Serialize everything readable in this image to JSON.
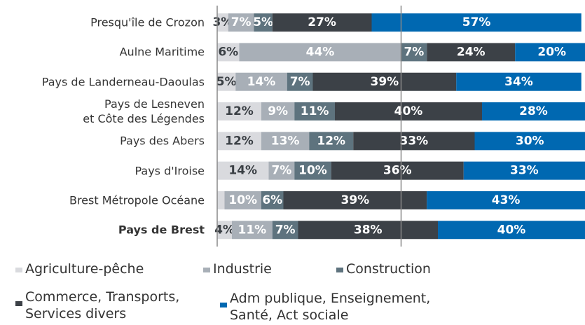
{
  "chart_data": {
    "type": "stacked-barh",
    "categories": [
      "Presqu'île de Crozon",
      "Aulne Maritime",
      "Pays de Landerneau-Daoulas",
      "Pays de Lesneven\net Côte des Légendes",
      "Pays des Abers",
      "Pays d'Iroise",
      "Brest Métropole Océane",
      "Pays de Brest"
    ],
    "highlight_index": 7,
    "xlim": [
      0,
      100
    ],
    "xticks": [
      0,
      50
    ],
    "grid": true,
    "series": [
      {
        "name": "Agriculture-pêche",
        "color": "#d9dade",
        "label_color": "#3a3f44",
        "values": [
          3,
          6,
          5,
          12,
          12,
          14,
          2,
          4
        ],
        "value_labels": [
          "3%",
          "6%",
          "5%",
          "12%",
          "12%",
          "14%",
          null,
          "4%"
        ]
      },
      {
        "name": "Industrie",
        "color": "#a8afb7",
        "label_color": "#ffffff",
        "values": [
          7,
          44,
          14,
          9,
          13,
          7,
          10,
          11
        ],
        "value_labels": [
          "7%",
          "44%",
          "14%",
          "9%",
          "13%",
          "7%",
          "10%",
          "11%"
        ]
      },
      {
        "name": "Construction",
        "color": "#5e737e",
        "label_color": "#ffffff",
        "values": [
          5,
          7,
          7,
          11,
          12,
          10,
          6,
          7
        ],
        "value_labels": [
          "5%",
          "7%",
          "7%",
          "11%",
          "12%",
          "10%",
          "6%",
          "7%"
        ]
      },
      {
        "name": "Commerce, Transports,\nServices divers",
        "color": "#3c4147",
        "label_color": "#ffffff",
        "values": [
          27,
          24,
          39,
          40,
          33,
          36,
          39,
          38
        ],
        "value_labels": [
          "27%",
          "24%",
          "39%",
          "40%",
          "33%",
          "36%",
          "39%",
          "38%"
        ]
      },
      {
        "name": "Adm publique, Enseignement,\nSanté, Act sociale",
        "color": "#0068b1",
        "label_color": "#ffffff",
        "values": [
          57,
          20,
          34,
          28,
          30,
          33,
          43,
          40
        ],
        "value_labels": [
          "57%",
          "20%",
          "34%",
          "28%",
          "30%",
          "33%",
          "43%",
          "40%"
        ]
      }
    ]
  }
}
